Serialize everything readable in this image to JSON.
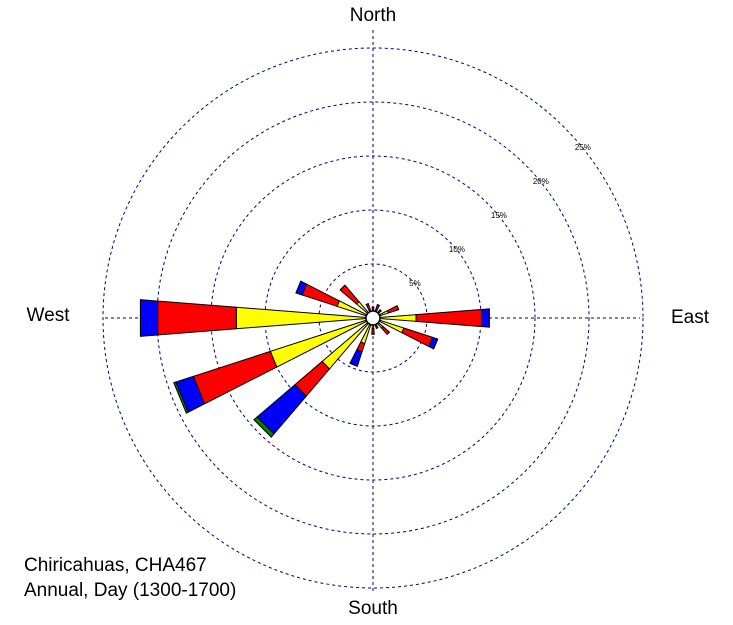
{
  "chart_data": {
    "type": "windrose",
    "direction_labels": {
      "north": "North",
      "east": "East",
      "south": "South",
      "west": "West"
    },
    "annotations": [
      "Chiricahuas, CHA467",
      "Annual, Day (1300-1700)"
    ],
    "x": [
      0,
      22.5,
      45,
      67.5,
      90,
      112.5,
      135,
      157.5,
      180,
      202.5,
      225,
      247.5,
      270,
      292.5,
      315,
      337.5
    ],
    "series": [
      {
        "color": "#ffff00",
        "values": [
          0.6,
          0.8,
          0.5,
          1.5,
          4,
          3,
          1.2,
          0.6,
          1,
          2.5,
          6.2,
          10,
          12.7,
          3.5,
          2,
          0.8
        ]
      },
      {
        "color": "#ff0000",
        "values": [
          0.4,
          0.5,
          0.5,
          1,
          6.1,
          2.8,
          0.8,
          0.4,
          0.5,
          0.8,
          3.3,
          7.5,
          7.3,
          3.4,
          2,
          0.6
        ]
      },
      {
        "color": "#0000ff",
        "values": [
          0,
          0,
          0,
          0,
          0.7,
          0.5,
          0,
          0,
          0,
          1.4,
          4.6,
          1.7,
          1.6,
          0.6,
          0,
          0
        ]
      },
      {
        "color": "#008000",
        "values": [
          0,
          0,
          0,
          0,
          0,
          0,
          0,
          0,
          0,
          0,
          0.4,
          0.2,
          0,
          0,
          0,
          0
        ]
      }
    ],
    "rlim": [
      0,
      25
    ],
    "rticks": [
      {
        "value": 5,
        "label": "5%"
      },
      {
        "value": 10,
        "label": "10%"
      },
      {
        "value": 15,
        "label": "15%"
      },
      {
        "value": 20,
        "label": "20%"
      },
      {
        "value": 25,
        "label": "25%"
      }
    ],
    "grid": true,
    "grid_color": "#000080"
  }
}
